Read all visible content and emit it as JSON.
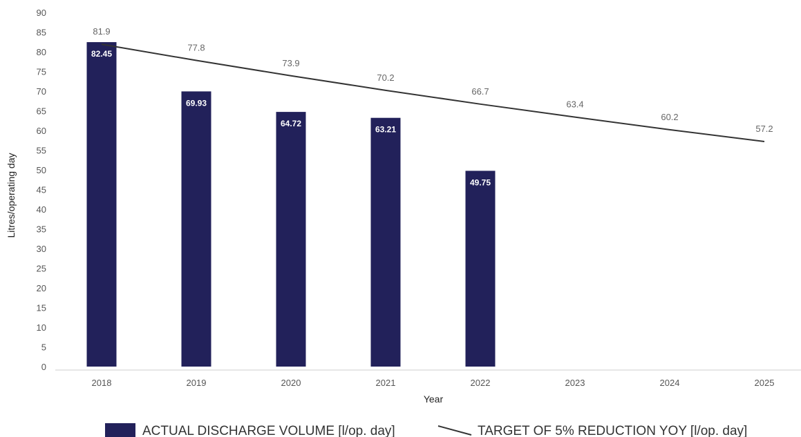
{
  "chart_data": {
    "type": "bar",
    "categories": [
      "2018",
      "2019",
      "2020",
      "2021",
      "2022",
      "2023",
      "2024",
      "2025"
    ],
    "series": [
      {
        "name": "ACTUAL DISCHARGE VOLUME [l/op. day]",
        "type": "bar",
        "values": [
          82.45,
          69.93,
          64.72,
          63.21,
          49.75,
          null,
          null,
          null
        ],
        "labels": [
          "82.45",
          "69.93",
          "64.72",
          "63.21",
          "49.75",
          "",
          "",
          ""
        ]
      },
      {
        "name": "TARGET OF 5% REDUCTION YOY [l/op. day]",
        "type": "line",
        "values": [
          81.9,
          77.8,
          73.9,
          70.2,
          66.7,
          63.4,
          60.2,
          57.2
        ],
        "labels": [
          "81.9",
          "77.8",
          "73.9",
          "70.2",
          "66.7",
          "63.4",
          "60.2",
          "57.2"
        ]
      }
    ],
    "xlabel": "Year",
    "ylabel": "Litres/operating day",
    "ylim": [
      0,
      90
    ],
    "yticks": [
      "0",
      "5",
      "10",
      "15",
      "20",
      "25",
      "30",
      "35",
      "40",
      "45",
      "50",
      "55",
      "60",
      "65",
      "70",
      "75",
      "80",
      "85",
      "90"
    ],
    "colors": {
      "bar": "#22215a",
      "line": "#333333",
      "axis": "#cccccc"
    },
    "grid": false,
    "legend": "bottom"
  }
}
